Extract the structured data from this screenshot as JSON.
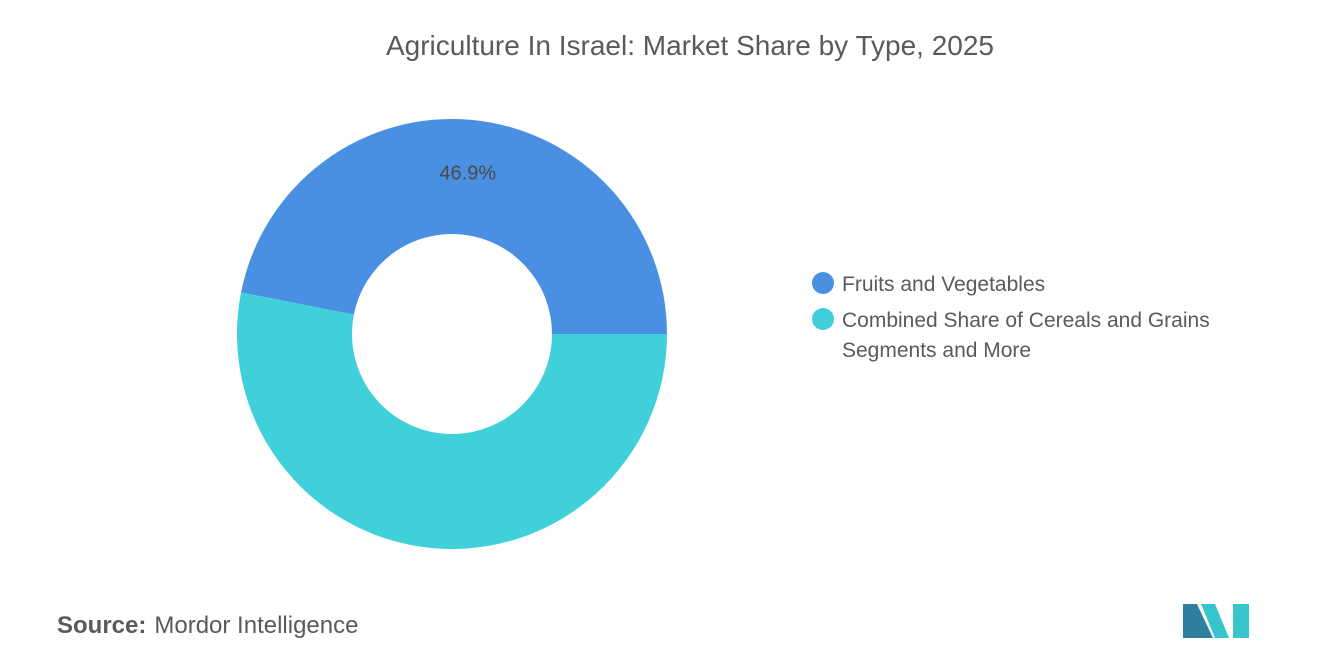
{
  "chart_data": {
    "type": "pie",
    "title": "Agriculture In Israel: Market Share by Type, 2025",
    "series": [
      {
        "name": "Fruits and Vegetables",
        "value": 46.9,
        "label": "46.9%",
        "color": "#4a90e2"
      },
      {
        "name": "Combined Share of Cereals and Grains Segments and More",
        "value": 53.1,
        "label": "",
        "color": "#3fd0d9"
      }
    ],
    "donut": true,
    "legend_position": "right"
  },
  "source": {
    "label": "Source:",
    "value": "Mordor Intelligence"
  },
  "logo": {
    "colors": [
      "#2f7f9e",
      "#37c4cc"
    ]
  }
}
